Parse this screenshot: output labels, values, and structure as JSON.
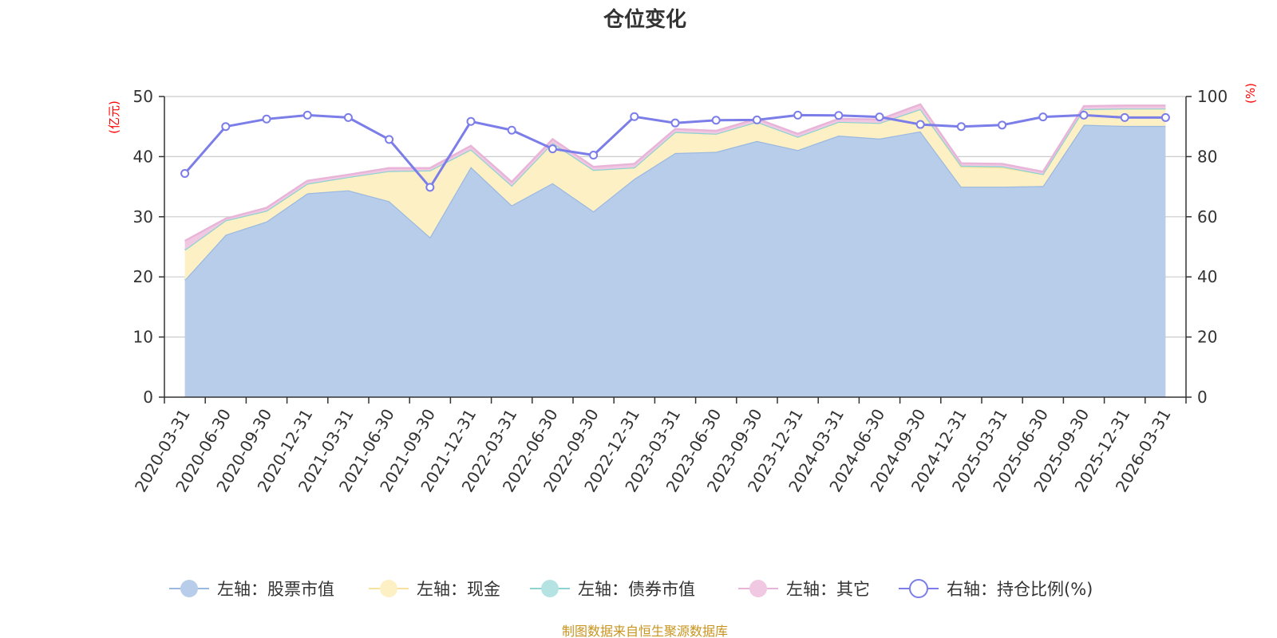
{
  "chart_data": {
    "type": "area",
    "title": "仓位变化",
    "left_axis_unit": "(亿元)",
    "right_axis_unit": "(%)",
    "ylim_left": [
      0,
      50
    ],
    "yticks_left": [
      "0",
      "10",
      "20",
      "30",
      "40",
      "50"
    ],
    "ylim_right": [
      0,
      100
    ],
    "yticks_right": [
      "0",
      "20",
      "40",
      "60",
      "80",
      "100"
    ],
    "grid": true,
    "legend_position": "bottom",
    "categories": [
      "2020-03-31",
      "2020-06-30",
      "2020-09-30",
      "2020-12-31",
      "2021-03-31",
      "2021-06-30",
      "2021-09-30",
      "2021-12-31",
      "2022-03-31",
      "2022-06-30",
      "2022-09-30",
      "2022-12-31",
      "2023-03-31",
      "2023-06-30",
      "2023-09-30",
      "2023-12-31",
      "2024-03-31",
      "2024-06-30",
      "2024-09-30",
      "2024-12-31",
      "2025-03-31",
      "2025-06-30",
      "2025-09-30",
      "2025-12-31",
      "2026-03-31"
    ],
    "series": [
      {
        "name": "左轴：股票市值",
        "axis": "left",
        "kind": "stacked-area",
        "color": "#9ab8e0",
        "fill": "#b8cde9",
        "values": [
          19.5,
          27.0,
          29.2,
          33.9,
          34.4,
          32.6,
          26.6,
          38.3,
          31.9,
          35.6,
          30.9,
          36.3,
          40.6,
          40.8,
          42.6,
          41.1,
          43.5,
          43.0,
          44.2,
          35.0,
          35.0,
          35.1,
          45.3,
          45.1,
          45.1
        ]
      },
      {
        "name": "左轴：现金",
        "axis": "left",
        "kind": "stacked-area",
        "color": "#f6e29c",
        "fill": "#fcf0c4",
        "values": [
          5.0,
          2.4,
          1.8,
          1.6,
          2.2,
          5.0,
          11.1,
          2.9,
          3.3,
          6.7,
          6.9,
          1.9,
          3.5,
          3.0,
          3.2,
          2.2,
          2.3,
          2.6,
          3.7,
          3.3,
          3.2,
          2.0,
          2.6,
          2.9,
          2.9
        ]
      },
      {
        "name": "左轴：债券市值",
        "axis": "left",
        "kind": "stacked-area",
        "color": "#8dd3d3",
        "fill": "#b5e2e2",
        "values": [
          0,
          0,
          0,
          0,
          0,
          0,
          0,
          0,
          0,
          0,
          0,
          0,
          0,
          0,
          0,
          0,
          0,
          0,
          0,
          0.2,
          0.2,
          0,
          0,
          0,
          0
        ]
      },
      {
        "name": "左轴：其它",
        "axis": "left",
        "kind": "stacked-area",
        "color": "#e8b4d8",
        "fill": "#f0c8e2",
        "values": [
          1.5,
          0.3,
          0.5,
          0.5,
          0.4,
          0.5,
          0.4,
          0.6,
          0.6,
          0.6,
          0.5,
          0.6,
          0.5,
          0.5,
          0.5,
          0.5,
          0.5,
          0.6,
          0.8,
          0.4,
          0.4,
          0.4,
          0.5,
          0.5,
          0.5
        ]
      },
      {
        "name": "右轴：持仓比例(%)",
        "axis": "right",
        "kind": "line",
        "color": "#7b7de8",
        "values": [
          74.4,
          90.0,
          92.5,
          93.8,
          93.0,
          85.7,
          69.8,
          91.7,
          88.8,
          82.6,
          80.5,
          93.3,
          91.2,
          92.1,
          92.2,
          93.8,
          93.7,
          93.2,
          90.7,
          90.0,
          90.5,
          93.2,
          93.8,
          93.0,
          93.0
        ]
      }
    ]
  },
  "footer": {
    "source": "制图数据来自恒生聚源数据库"
  }
}
